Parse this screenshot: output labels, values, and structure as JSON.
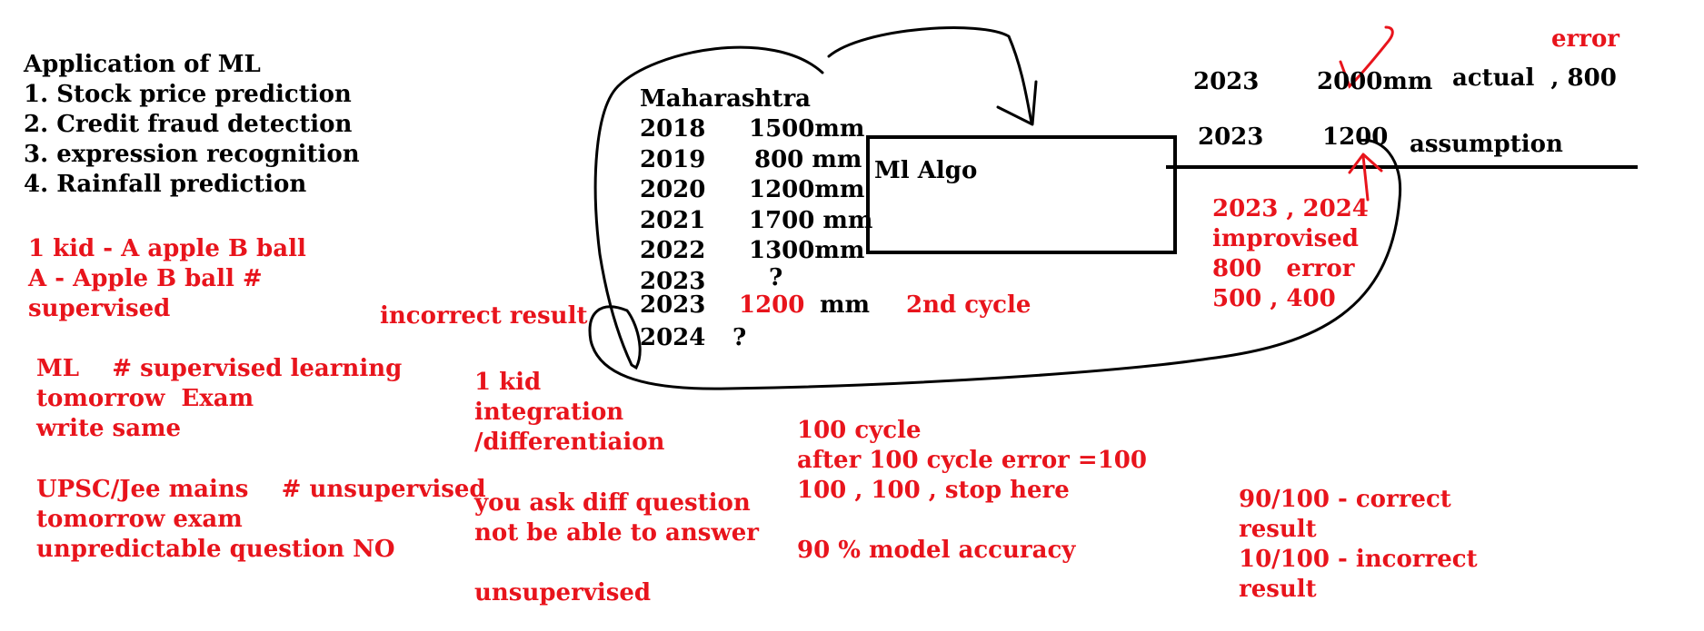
{
  "colors": {
    "ink": "#000000",
    "marker": "#e8141c",
    "background": "#ffffff"
  },
  "left_notes": {
    "title": "Application of ML",
    "items": [
      "1. Stock price prediction",
      "2. Credit fraud detection",
      "3. expression recognition",
      "4. Rainfall prediction"
    ]
  },
  "kid_note": {
    "lines": [
      "1 kid - A apple B ball",
      "A - Apple B ball #",
      "supervised"
    ]
  },
  "supervised_note": {
    "lines": [
      "ML    # supervised learning",
      "tomorrow  Exam",
      "write same"
    ]
  },
  "unsupervised_note": {
    "lines": [
      "UPSC/Jee mains    # unsupervised",
      "tomorrow exam",
      "unpredictable question NO"
    ]
  },
  "integration_note": {
    "lines": [
      "1 kid",
      "integration",
      "/differentiaion",
      "",
      "you ask diff question",
      "not be able to answer",
      "",
      "unsupervised"
    ]
  },
  "data_blob": {
    "title": "Maharashtra",
    "rows": [
      {
        "year": "2018",
        "value": "1500mm"
      },
      {
        "year": "2019",
        "value": "800 mm"
      },
      {
        "year": "2020",
        "value": "1200mm"
      },
      {
        "year": "2021",
        "value": "1700 mm"
      },
      {
        "year": "2022",
        "value": "1300mm"
      },
      {
        "year": "2023",
        "value": "?"
      }
    ],
    "row_2023_year": "2023",
    "row_2023_value": "1200",
    "row_2023_unit": "mm",
    "row_2024_year": "2024",
    "row_2024_value": "?"
  },
  "incorrect_result_label": "incorrect result",
  "second_cycle_label": "2nd cycle",
  "algo_box_label": "Ml Algo",
  "actual_row": {
    "year": "2023",
    "value": "2000mm",
    "label": "actual  , 800"
  },
  "error_label": "error",
  "assumption_row": {
    "year": "2023",
    "value": "1200",
    "label": "assumption"
  },
  "improve_note": {
    "lines": [
      "2023 , 2024",
      "improvised",
      "800   error",
      "500 , 400"
    ]
  },
  "cycle_note": {
    "lines": [
      "100 cycle",
      "after 100 cycle error =100",
      "100 , 100 , stop here",
      "",
      "90 % model accuracy"
    ]
  },
  "result_note": {
    "lines": [
      "90/100 - correct",
      "result",
      "10/100 - incorrect",
      "result"
    ]
  }
}
